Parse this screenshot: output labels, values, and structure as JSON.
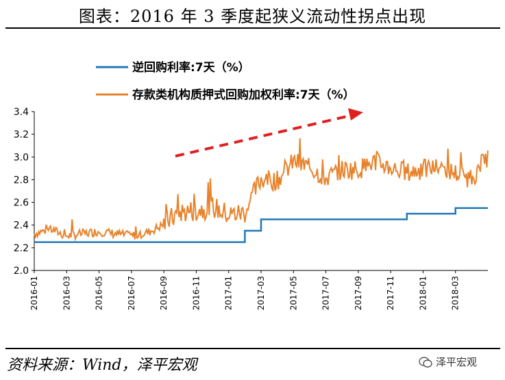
{
  "title": "图表：2016 年 3 季度起狭义流动性拐点出现",
  "source": "资料来源：Wind，泽平宏观",
  "watermark": "泽平宏观",
  "colors": {
    "repo": "#1f77b4",
    "pledged": "#e8822a",
    "arrow": "#e02020"
  },
  "chart_data": {
    "type": "line",
    "title": "",
    "xlabel": "",
    "ylabel": "",
    "ylim": [
      2.0,
      3.4
    ],
    "yticks": [
      "2.0",
      "2.2",
      "2.4",
      "2.6",
      "2.8",
      "3.0",
      "3.2",
      "3.4"
    ],
    "xrange": [
      "2016-01",
      "2018-05"
    ],
    "xticks": [
      "2016-01",
      "2016-03",
      "2016-05",
      "2016-07",
      "2016-09",
      "2016-11",
      "2017-01",
      "2017-03",
      "2017-05",
      "2017-07",
      "2017-09",
      "2017-11",
      "2018-01",
      "2018-03"
    ],
    "grid": false,
    "legend": "top-left",
    "series": [
      {
        "name": "逆回购利率:7天（%）",
        "color": "#1f77b4",
        "step": true,
        "x": [
          "2016-01",
          "2017-02",
          "2017-03",
          "2017-12",
          "2018-03",
          "2018-05"
        ],
        "values": [
          2.25,
          2.35,
          2.45,
          2.5,
          2.55,
          2.55
        ]
      },
      {
        "name": "存款类机构质押式回购加权利率:7天（%）",
        "color": "#e8822a",
        "x": [
          "2016-01",
          "2016-02",
          "2016-03",
          "2016-04",
          "2016-05",
          "2016-06",
          "2016-07",
          "2016-08",
          "2016-09",
          "2016-10",
          "2016-11",
          "2016-12",
          "2017-01",
          "2017-02",
          "2017-03",
          "2017-04",
          "2017-05",
          "2017-06",
          "2017-07",
          "2017-08",
          "2017-09",
          "2017-10",
          "2017-11",
          "2017-12",
          "2018-01",
          "2018-02",
          "2018-03",
          "2018-04",
          "2018-05"
        ],
        "values": [
          2.32,
          2.36,
          2.3,
          2.32,
          2.34,
          2.32,
          2.3,
          2.33,
          2.4,
          2.5,
          2.52,
          2.55,
          2.48,
          2.5,
          2.8,
          2.78,
          2.95,
          2.9,
          2.8,
          2.88,
          2.88,
          2.95,
          2.9,
          2.85,
          2.88,
          2.9,
          2.85,
          2.8,
          3.0
        ]
      }
    ],
    "annotation": {
      "type": "arrow",
      "direction": "up-right"
    }
  }
}
